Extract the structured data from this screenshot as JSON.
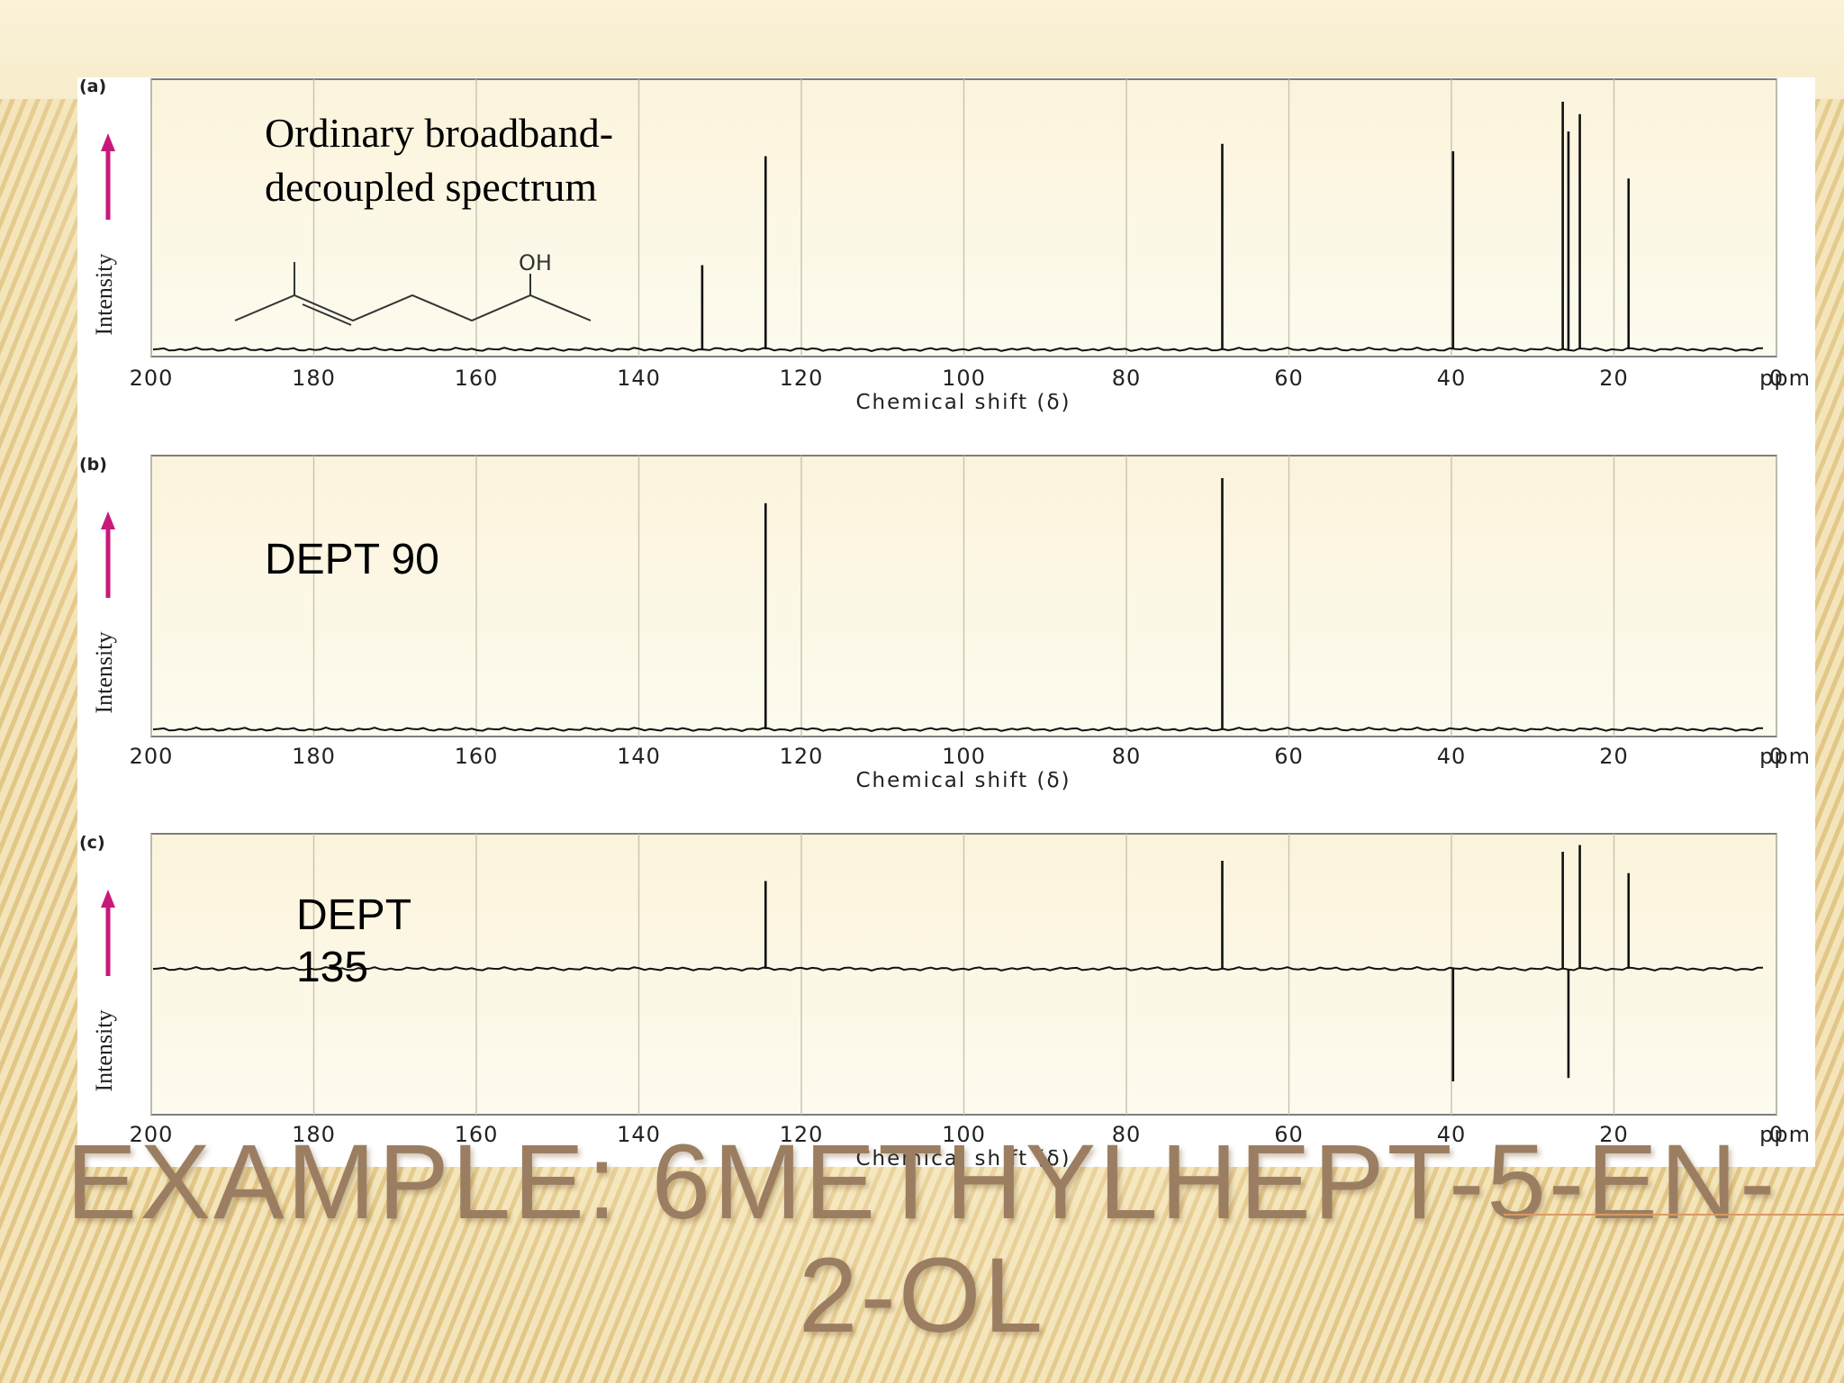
{
  "slide": {
    "title": "Example: 6Methylhept-5-en-2-ol"
  },
  "colors": {
    "panel_top": "#fbf4dc",
    "panel_bottom": "#fdfbef",
    "grid": "#c9c2ad",
    "trace": "#111111",
    "arrow": "#c8197a"
  },
  "chart_data": [
    {
      "type": "bar",
      "panel": "(a)",
      "title": "Ordinary broadband-\ndecoupled spectrum",
      "xlabel": "Chemical shift (δ)",
      "ylabel": "Intensity",
      "x_unit": "ppm",
      "xlim": [
        200,
        0
      ],
      "ylim": [
        -1,
        1
      ],
      "xticks": [
        200,
        180,
        160,
        140,
        120,
        100,
        80,
        60,
        40,
        20,
        0
      ],
      "grid": true,
      "molecule_label": "OH",
      "peaks": [
        {
          "x": 132.2,
          "y": 0.34
        },
        {
          "x": 124.4,
          "y": 0.78
        },
        {
          "x": 68.2,
          "y": 0.83
        },
        {
          "x": 39.8,
          "y": 0.8
        },
        {
          "x": 26.3,
          "y": 1.0
        },
        {
          "x": 25.6,
          "y": 0.88
        },
        {
          "x": 24.2,
          "y": 0.95
        },
        {
          "x": 18.2,
          "y": 0.69
        }
      ]
    },
    {
      "type": "bar",
      "panel": "(b)",
      "title": "DEPT 90",
      "xlabel": "Chemical shift (δ)",
      "ylabel": "Intensity",
      "x_unit": "ppm",
      "xlim": [
        200,
        0
      ],
      "ylim": [
        -1,
        1
      ],
      "xticks": [
        200,
        180,
        160,
        140,
        120,
        100,
        80,
        60,
        40,
        20,
        0
      ],
      "grid": true,
      "peaks": [
        {
          "x": 124.4,
          "y": 0.9
        },
        {
          "x": 68.2,
          "y": 1.0
        }
      ]
    },
    {
      "type": "bar",
      "panel": "(c)",
      "title": "DEPT\n135",
      "xlabel": "Chemical shift (δ)",
      "ylabel": "Intensity",
      "x_unit": "ppm",
      "xlim": [
        200,
        0
      ],
      "ylim": [
        -1,
        1
      ],
      "xticks": [
        200,
        180,
        160,
        140,
        120,
        100,
        80,
        60,
        40,
        20,
        0
      ],
      "grid": true,
      "peaks": [
        {
          "x": 124.4,
          "y": 0.78
        },
        {
          "x": 68.2,
          "y": 0.96
        },
        {
          "x": 39.8,
          "y": -1.0
        },
        {
          "x": 26.3,
          "y": 1.04
        },
        {
          "x": 25.6,
          "y": -0.97
        },
        {
          "x": 24.2,
          "y": 1.1
        },
        {
          "x": 18.2,
          "y": 0.85
        }
      ]
    }
  ]
}
